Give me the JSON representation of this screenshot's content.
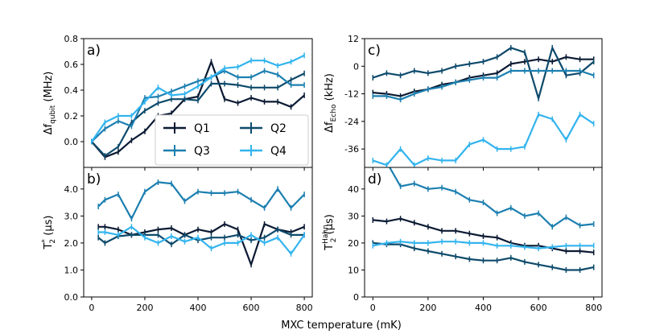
{
  "figure": {
    "xlabel": "MXC temperature (mK)"
  },
  "colors": {
    "Q1": "#0b1a33",
    "Q2": "#0d4a6b",
    "Q3": "#1c7fb0",
    "Q4": "#33b4ee"
  },
  "chart_data": [
    {
      "type": "line",
      "panel_label": "a)",
      "ylabel_main": "Δf",
      "ylabel_sub": "qubit",
      "ylabel_tail": " (MHz)",
      "xlim": [
        -30,
        830
      ],
      "ylim": [
        -0.2,
        0.8
      ],
      "xticks": [
        0,
        200,
        400,
        600,
        800
      ],
      "yticks": [
        0.0,
        0.2,
        0.4,
        0.6,
        0.8
      ],
      "ytick_labels": [
        "0.0",
        "0.2",
        "0.4",
        "0.6",
        "0.8"
      ],
      "legend": {
        "placement": "lower-center",
        "entries": [
          "Q1",
          "Q2",
          "Q3",
          "Q4"
        ]
      },
      "series": [
        {
          "name": "Q1",
          "x": [
            0,
            50,
            100,
            150,
            200,
            250,
            300,
            350,
            400,
            450,
            500,
            550,
            600,
            650,
            700,
            750,
            800
          ],
          "y": [
            0.0,
            -0.12,
            -0.08,
            0.01,
            0.08,
            0.2,
            0.22,
            0.33,
            0.35,
            0.62,
            0.33,
            0.3,
            0.34,
            0.31,
            0.31,
            0.27,
            0.36
          ]
        },
        {
          "name": "Q2",
          "x": [
            0,
            50,
            100,
            150,
            200,
            250,
            300,
            350,
            400,
            450,
            500,
            550,
            600,
            650,
            700,
            750,
            800
          ],
          "y": [
            0.0,
            -0.11,
            -0.04,
            0.15,
            0.24,
            0.3,
            0.33,
            0.33,
            0.32,
            0.45,
            0.45,
            0.44,
            0.42,
            0.42,
            0.42,
            0.48,
            0.53
          ]
        },
        {
          "name": "Q3",
          "x": [
            0,
            50,
            100,
            150,
            200,
            250,
            300,
            350,
            400,
            450,
            500,
            550,
            600,
            650,
            700,
            750,
            800
          ],
          "y": [
            0.0,
            0.1,
            0.16,
            0.12,
            0.34,
            0.35,
            0.39,
            0.43,
            0.47,
            0.5,
            0.55,
            0.5,
            0.5,
            0.55,
            0.52,
            0.44,
            0.44
          ]
        },
        {
          "name": "Q4",
          "x": [
            0,
            50,
            100,
            150,
            200,
            250,
            300,
            350,
            400,
            450,
            500,
            550,
            600,
            650,
            700,
            750,
            800
          ],
          "y": [
            0.0,
            0.15,
            0.2,
            0.2,
            0.31,
            0.42,
            0.36,
            0.37,
            0.43,
            0.5,
            0.57,
            0.58,
            0.63,
            0.63,
            0.59,
            0.62,
            0.67
          ]
        }
      ]
    },
    {
      "type": "line",
      "panel_label": "b)",
      "ylabel_main": "T",
      "ylabel_sub": "2",
      "ylabel_sup": "*",
      "ylabel_tail": " (μs)",
      "xlim": [
        -30,
        830
      ],
      "ylim": [
        0.0,
        4.8
      ],
      "xticks": [
        0,
        200,
        400,
        600,
        800
      ],
      "yticks": [
        0.0,
        1.0,
        2.0,
        3.0,
        4.0
      ],
      "ytick_labels": [
        "0.0",
        "1.0",
        "2.0",
        "3.0",
        "4.0"
      ],
      "series": [
        {
          "name": "Q1",
          "x": [
            25,
            50,
            100,
            150,
            200,
            250,
            300,
            350,
            400,
            450,
            500,
            550,
            600,
            650,
            700,
            750,
            800
          ],
          "y": [
            2.6,
            2.6,
            2.5,
            2.3,
            2.4,
            2.5,
            2.55,
            2.3,
            2.5,
            2.4,
            2.7,
            2.5,
            1.2,
            2.7,
            2.5,
            2.4,
            2.6
          ]
        },
        {
          "name": "Q2",
          "x": [
            25,
            50,
            100,
            150,
            200,
            250,
            300,
            350,
            400,
            450,
            500,
            550,
            600,
            650,
            700,
            750,
            800
          ],
          "y": [
            2.2,
            2.0,
            2.25,
            2.3,
            2.3,
            2.3,
            1.95,
            2.3,
            2.1,
            2.2,
            2.2,
            2.3,
            2.1,
            2.2,
            2.5,
            2.3,
            2.3
          ]
        },
        {
          "name": "Q3",
          "x": [
            25,
            50,
            100,
            150,
            200,
            250,
            300,
            350,
            400,
            450,
            500,
            550,
            600,
            650,
            700,
            750,
            800
          ],
          "y": [
            3.35,
            3.6,
            3.8,
            2.9,
            3.9,
            4.25,
            4.2,
            3.55,
            3.9,
            3.85,
            3.85,
            3.9,
            3.6,
            3.3,
            4.0,
            3.3,
            3.8
          ]
        },
        {
          "name": "Q4",
          "x": [
            25,
            50,
            100,
            150,
            200,
            250,
            300,
            350,
            400,
            450,
            500,
            550,
            600,
            650,
            700,
            750,
            800
          ],
          "y": [
            2.4,
            2.4,
            2.3,
            2.6,
            2.2,
            2.0,
            2.25,
            2.05,
            2.2,
            1.8,
            2.0,
            2.0,
            2.3,
            2.0,
            2.2,
            1.6,
            2.3
          ]
        }
      ]
    },
    {
      "type": "line",
      "panel_label": "c)",
      "ylabel_main": "Δf",
      "ylabel_sub": "Echo",
      "ylabel_tail": " (kHz)",
      "xlim": [
        -30,
        830
      ],
      "ylim": [
        -44,
        12
      ],
      "xticks": [
        0,
        200,
        400,
        600,
        800
      ],
      "yticks": [
        12,
        0,
        -12,
        -24,
        -36
      ],
      "ytick_labels": [
        "12",
        "0",
        "-12",
        "-24",
        "-36"
      ],
      "series": [
        {
          "name": "Q1",
          "x": [
            0,
            50,
            100,
            150,
            200,
            250,
            300,
            350,
            400,
            450,
            500,
            550,
            600,
            650,
            700,
            750,
            800
          ],
          "y": [
            -11.5,
            -12,
            -13,
            -11,
            -10,
            -8,
            -7,
            -5,
            -4,
            -3,
            1,
            2,
            3,
            2,
            4,
            3,
            3
          ]
        },
        {
          "name": "Q2",
          "x": [
            0,
            50,
            100,
            150,
            200,
            250,
            300,
            350,
            400,
            450,
            500,
            550,
            600,
            650,
            700,
            750,
            800
          ],
          "y": [
            -5,
            -3,
            -4,
            -2,
            -3,
            -2,
            0,
            1,
            2,
            4,
            8,
            6,
            -14,
            8,
            -4,
            -3,
            2
          ]
        },
        {
          "name": "Q3",
          "x": [
            0,
            50,
            100,
            150,
            200,
            250,
            300,
            350,
            400,
            450,
            500,
            550,
            600,
            650,
            700,
            750,
            800
          ],
          "y": [
            -13,
            -13,
            -14.5,
            -12,
            -10,
            -9,
            -7,
            -6,
            -5,
            -5,
            -2,
            -2,
            -2,
            -2,
            -2,
            -2,
            -4
          ]
        },
        {
          "name": "Q4",
          "x": [
            0,
            50,
            100,
            150,
            200,
            250,
            300,
            350,
            400,
            450,
            500,
            550,
            600,
            650,
            700,
            750,
            800
          ],
          "y": [
            -41,
            -43,
            -36,
            -43,
            -40,
            -41,
            -41,
            -34,
            -32,
            -36,
            -36,
            -35,
            -21,
            -23,
            -32,
            -21,
            -25
          ]
        }
      ]
    },
    {
      "type": "line",
      "panel_label": "d)",
      "ylabel_main": "T",
      "ylabel_sub": "2",
      "ylabel_sup": "Hahn",
      "ylabel_tail": " (μs)",
      "xlim": [
        -30,
        830
      ],
      "ylim": [
        0,
        48
      ],
      "xticks": [
        0,
        200,
        400,
        600,
        800
      ],
      "xtick_labels": [
        "0",
        "200",
        "400",
        "600",
        "800"
      ],
      "yticks": [
        0,
        10,
        20,
        30,
        40
      ],
      "ytick_labels": [
        "0",
        "10",
        "20",
        "30",
        "40"
      ],
      "series": [
        {
          "name": "Q1",
          "x": [
            0,
            50,
            100,
            150,
            200,
            250,
            300,
            350,
            400,
            450,
            500,
            550,
            600,
            650,
            700,
            750,
            800
          ],
          "y": [
            28.5,
            28,
            29,
            27.5,
            26,
            24.5,
            24.5,
            23.5,
            22.5,
            22,
            20,
            19,
            19,
            18,
            17,
            17,
            16.5
          ]
        },
        {
          "name": "Q2",
          "x": [
            0,
            50,
            100,
            150,
            200,
            250,
            300,
            350,
            400,
            450,
            500,
            550,
            600,
            650,
            700,
            750,
            800
          ],
          "y": [
            20,
            19.5,
            19.5,
            18,
            17,
            16,
            15,
            14,
            13.5,
            13.5,
            14.5,
            13,
            12,
            11,
            10,
            10,
            11
          ]
        },
        {
          "name": "Q3",
          "x": [
            0,
            50,
            100,
            150,
            200,
            250,
            300,
            350,
            400,
            450,
            500,
            550,
            600,
            650,
            700,
            750,
            800
          ],
          "y": [
            52,
            50,
            41,
            42,
            40,
            40.5,
            39,
            36,
            35,
            31,
            33,
            30,
            31,
            26,
            29.5,
            26.5,
            27
          ]
        },
        {
          "name": "Q4",
          "x": [
            0,
            50,
            100,
            150,
            200,
            250,
            300,
            350,
            400,
            450,
            500,
            550,
            600,
            650,
            700,
            750,
            800
          ],
          "y": [
            19,
            20,
            20.5,
            20,
            20,
            20.5,
            20.5,
            20,
            20,
            19,
            19,
            18.5,
            18,
            18.5,
            19,
            19,
            19
          ]
        }
      ]
    }
  ]
}
